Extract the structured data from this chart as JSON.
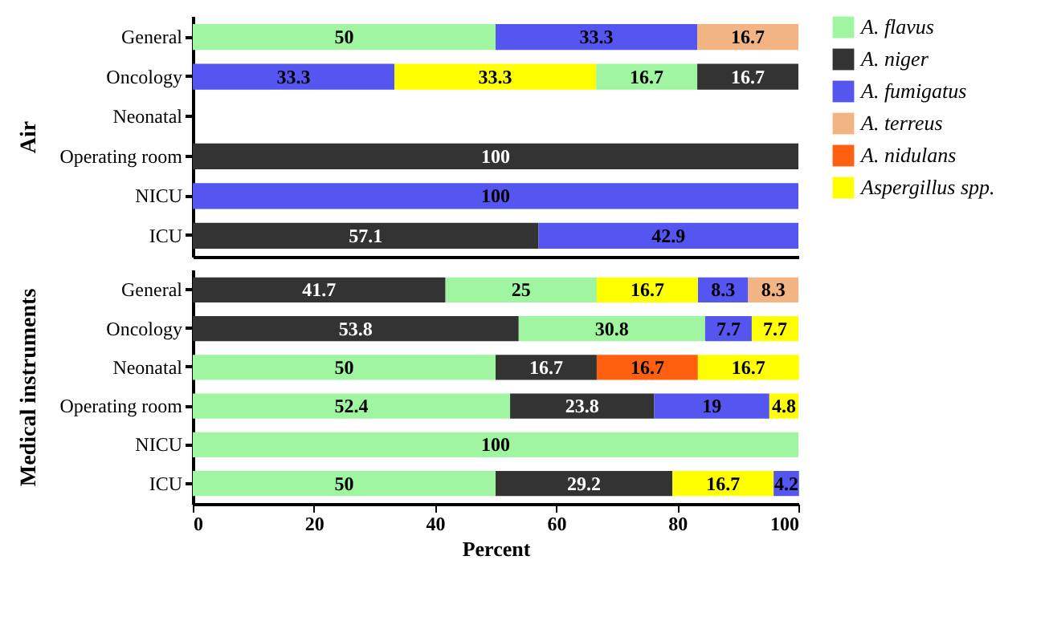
{
  "chart_data": [
    {
      "type": "bar",
      "orientation": "horizontal",
      "ylabel": "Air",
      "categories": [
        "General",
        "Oncology",
        "Neonatal",
        "Operating room",
        "NICU",
        "ICU"
      ],
      "xlim": [
        0,
        100
      ],
      "xticks": [
        0,
        20,
        40,
        60,
        80,
        100
      ],
      "tick_labels": "y",
      "data_labels": true,
      "legend": "top right",
      "grid": false,
      "series": [
        {
          "name": "A. flavus",
          "color": "#a0f5a0",
          "values": [
            50,
            16.7,
            null,
            null,
            null,
            null
          ],
          "base": [
            0,
            66.6,
            null,
            null,
            null,
            null
          ]
        },
        {
          "name": "A. niger",
          "color": "#333333",
          "values": [
            null,
            16.7,
            null,
            100,
            null,
            57.1
          ],
          "base": [
            null,
            83.3,
            null,
            0,
            null,
            0
          ]
        },
        {
          "name": "A. fumigatus",
          "color": "#5555f0",
          "values": [
            33.3,
            33.3,
            null,
            null,
            100,
            42.9
          ],
          "base": [
            50,
            0,
            null,
            null,
            0,
            57.1
          ]
        },
        {
          "name": "A. terreus",
          "color": "#f2b482",
          "values": [
            16.7,
            null,
            null,
            null,
            null,
            null
          ],
          "base": [
            83.3,
            null,
            null,
            null,
            null,
            null
          ]
        },
        {
          "name": "Aspergillus spp.",
          "color": "#ffff00",
          "values": [
            null,
            33.3,
            null,
            null,
            null,
            null
          ],
          "base": [
            null,
            33.3,
            null,
            null,
            null,
            null
          ]
        }
      ]
    },
    {
      "type": "bar",
      "orientation": "horizontal",
      "ylabel": "Medical instruments",
      "xlabel": "Percent",
      "categories": [
        "General",
        "Oncology",
        "Neonatal",
        "Operating room",
        "NICU",
        "ICU"
      ],
      "xlim": [
        0,
        100
      ],
      "xticks": [
        0,
        20,
        40,
        60,
        80,
        100
      ],
      "data_labels": true,
      "grid": false,
      "series": [
        {
          "name": "A. flavus",
          "color": "#a0f5a0",
          "values": [
            25,
            30.8,
            50,
            52.4,
            100,
            50
          ],
          "base": [
            41.7,
            53.8,
            0,
            0,
            0,
            0
          ]
        },
        {
          "name": "A. niger",
          "color": "#333333",
          "values": [
            41.7,
            53.8,
            16.7,
            23.8,
            null,
            29.2
          ],
          "base": [
            0,
            0,
            50,
            52.4,
            null,
            50
          ]
        },
        {
          "name": "A. fumigatus",
          "color": "#5555f0",
          "values": [
            8.3,
            7.7,
            null,
            19,
            null,
            4.2
          ],
          "base": [
            83.4,
            84.6,
            null,
            76.2,
            null,
            95.9
          ]
        },
        {
          "name": "A. terreus",
          "color": "#f2b482",
          "values": [
            8.3,
            null,
            null,
            null,
            null,
            null
          ],
          "base": [
            91.7,
            null,
            null,
            null,
            null,
            null
          ]
        },
        {
          "name": "A. nidulans",
          "color": "#ff6010",
          "values": [
            null,
            null,
            16.7,
            null,
            null,
            null
          ],
          "base": [
            null,
            null,
            66.7,
            null,
            null,
            null
          ]
        },
        {
          "name": "Aspergillus spp.",
          "color": "#ffff00",
          "values": [
            16.7,
            7.7,
            16.7,
            4.8,
            null,
            16.7
          ],
          "base": [
            66.7,
            92.3,
            83.4,
            95.2,
            null,
            79.2
          ]
        }
      ]
    }
  ]
}
